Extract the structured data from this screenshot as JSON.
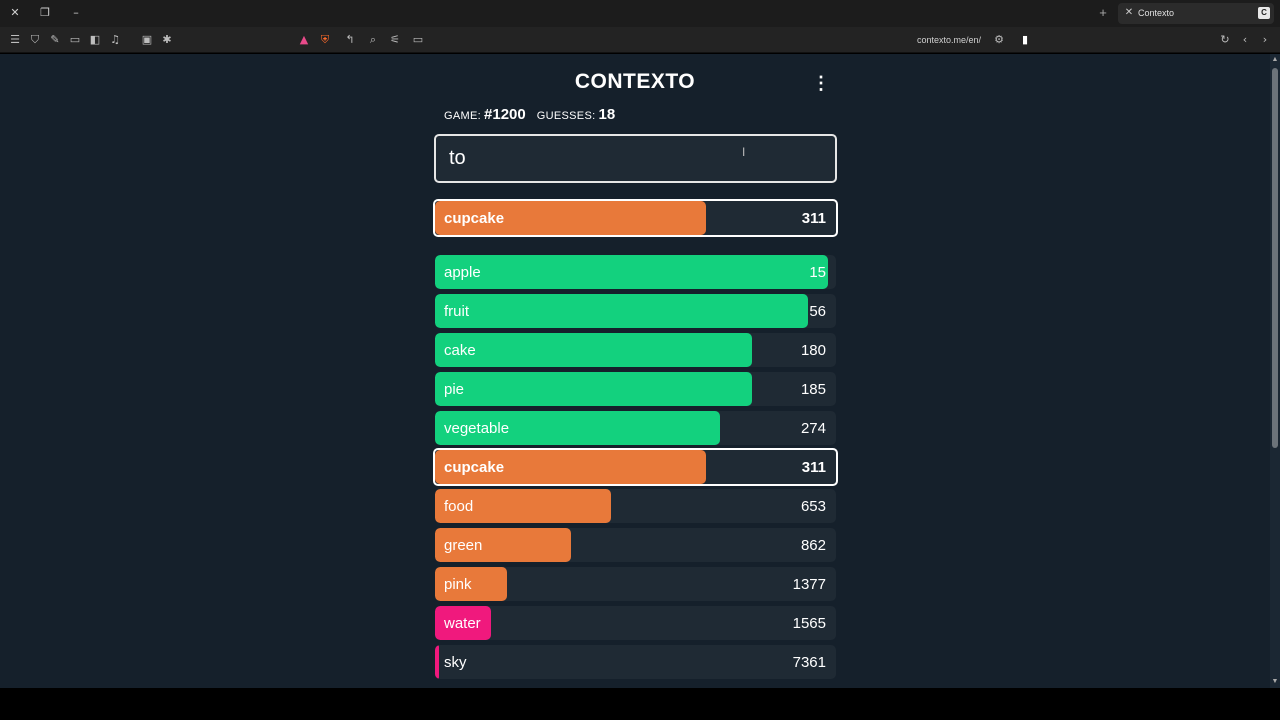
{
  "browser": {
    "tab_title": "Contexto",
    "url": "contexto.me/en/",
    "tab_favicon_letter": "C"
  },
  "app": {
    "title": "CONTEXTO",
    "game_label": "GAME:",
    "game_number": "#1200",
    "guesses_label": "GUESSES:",
    "guesses_count": "18",
    "input_value": "to"
  },
  "colors": {
    "green": "#13d17e",
    "orange": "#e8793a",
    "pink": "#f0197d",
    "row_bg": "#1f2a34",
    "page_bg": "#15202b"
  },
  "last_guess": {
    "word": "cupcake",
    "rank": "311",
    "fill": 0.677,
    "color": "orange"
  },
  "guesses": [
    {
      "word": "apple",
      "rank": "15",
      "fill": 0.98,
      "color": "green"
    },
    {
      "word": "fruit",
      "rank": "56",
      "fill": 0.93,
      "color": "green"
    },
    {
      "word": "cake",
      "rank": "180",
      "fill": 0.79,
      "color": "green"
    },
    {
      "word": "pie",
      "rank": "185",
      "fill": 0.79,
      "color": "green"
    },
    {
      "word": "vegetable",
      "rank": "274",
      "fill": 0.71,
      "color": "green"
    },
    {
      "word": "cupcake",
      "rank": "311",
      "fill": 0.677,
      "color": "orange",
      "highlight": true
    },
    {
      "word": "food",
      "rank": "653",
      "fill": 0.44,
      "color": "orange"
    },
    {
      "word": "green",
      "rank": "862",
      "fill": 0.34,
      "color": "orange"
    },
    {
      "word": "pink",
      "rank": "1377",
      "fill": 0.18,
      "color": "orange"
    },
    {
      "word": "water",
      "rank": "1565",
      "fill": 0.14,
      "color": "pink"
    },
    {
      "word": "sky",
      "rank": "7361",
      "fill": 0.01,
      "color": "pink"
    }
  ]
}
